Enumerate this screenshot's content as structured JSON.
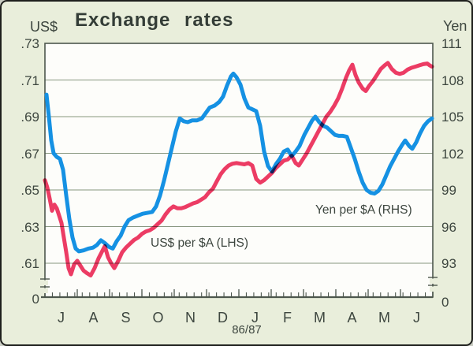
{
  "page": {
    "background_color": "#e9eedb",
    "plot_background": "#fdfdfa",
    "text_color": "#3d463f",
    "grid_color": "#87967f",
    "axis_color": "#4d574d"
  },
  "header": {
    "title": "Exchange rates"
  },
  "left_axis": {
    "unit_label": "US$",
    "tick_labels": [
      ".73",
      ".71",
      ".69",
      ".67",
      ".65",
      ".63",
      ".61"
    ],
    "zero_label": "0"
  },
  "right_axis": {
    "unit_label": "Yen",
    "tick_labels": [
      "111",
      "108",
      "105",
      "102",
      "99",
      "96",
      "93"
    ],
    "zero_label": "0"
  },
  "x_axis": {
    "month_labels": [
      "J",
      "A",
      "S",
      "O",
      "N",
      "D",
      "J",
      "F",
      "M",
      "A",
      "M",
      "J"
    ],
    "period_label": "86/87"
  },
  "annotations": {
    "lhs_series_label": "US$ per $A (LHS)",
    "rhs_series_label": "Yen per $A (RHS)"
  },
  "chart_data": {
    "type": "line",
    "title": "Exchange rates",
    "x_period": "Jul 1986 - Jun 1987 (weekly), labels J A S O N D J F M A M J, 86/87",
    "left_axis": {
      "label": "US$",
      "ticks": [
        0.73,
        0.71,
        0.69,
        0.67,
        0.65,
        0.63,
        0.61
      ],
      "min_shown": 0.61,
      "max_shown": 0.73,
      "axis_break_to_zero": true
    },
    "right_axis": {
      "label": "Yen",
      "ticks": [
        111,
        108,
        105,
        102,
        99,
        96,
        93
      ],
      "min_shown": 93,
      "max_shown": 111,
      "axis_break_to_zero": true
    },
    "grid": "horizontal only",
    "series": [
      {
        "name": "US$ per $A (LHS)",
        "axis": "left",
        "color": "#1591e3",
        "points": [
          [
            57,
            0.702
          ],
          [
            60,
            0.69
          ],
          [
            63,
            0.677
          ],
          [
            66,
            0.67
          ],
          [
            70,
            0.668
          ],
          [
            74,
            0.667
          ],
          [
            78,
            0.661
          ],
          [
            82,
            0.647
          ],
          [
            86,
            0.634
          ],
          [
            90,
            0.624
          ],
          [
            94,
            0.618
          ],
          [
            98,
            0.6165
          ],
          [
            104,
            0.617
          ],
          [
            110,
            0.618
          ],
          [
            116,
            0.6185
          ],
          [
            121,
            0.62
          ],
          [
            126,
            0.6225
          ],
          [
            131,
            0.621
          ],
          [
            136,
            0.619
          ],
          [
            141,
            0.618
          ],
          [
            146,
            0.622
          ],
          [
            151,
            0.625
          ],
          [
            156,
            0.63
          ],
          [
            161,
            0.6335
          ],
          [
            167,
            0.635
          ],
          [
            173,
            0.636
          ],
          [
            179,
            0.637
          ],
          [
            185,
            0.6375
          ],
          [
            191,
            0.638
          ],
          [
            196,
            0.641
          ],
          [
            201,
            0.647
          ],
          [
            206,
            0.655
          ],
          [
            211,
            0.664
          ],
          [
            216,
            0.673
          ],
          [
            221,
            0.682
          ],
          [
            226,
            0.689
          ],
          [
            231,
            0.6875
          ],
          [
            236,
            0.687
          ],
          [
            242,
            0.688
          ],
          [
            248,
            0.688
          ],
          [
            254,
            0.689
          ],
          [
            259,
            0.692
          ],
          [
            264,
            0.695
          ],
          [
            270,
            0.696
          ],
          [
            276,
            0.698
          ],
          [
            281,
            0.701
          ],
          [
            286,
            0.707
          ],
          [
            291,
            0.712
          ],
          [
            294,
            0.7135
          ],
          [
            298,
            0.7115
          ],
          [
            303,
            0.7075
          ],
          [
            308,
            0.7
          ],
          [
            313,
            0.695
          ],
          [
            318,
            0.694
          ],
          [
            323,
            0.693
          ],
          [
            328,
            0.685
          ],
          [
            333,
            0.671
          ],
          [
            338,
            0.663
          ],
          [
            343,
            0.66
          ],
          [
            348,
            0.664
          ],
          [
            353,
            0.667
          ],
          [
            358,
            0.671
          ],
          [
            363,
            0.672
          ],
          [
            368,
            0.6685
          ],
          [
            373,
            0.671
          ],
          [
            378,
            0.674
          ],
          [
            384,
            0.68
          ],
          [
            389,
            0.684
          ],
          [
            394,
            0.688
          ],
          [
            398,
            0.69
          ],
          [
            403,
            0.687
          ],
          [
            408,
            0.685
          ],
          [
            413,
            0.684
          ],
          [
            418,
            0.682
          ],
          [
            423,
            0.68
          ],
          [
            428,
            0.6795
          ],
          [
            433,
            0.6795
          ],
          [
            438,
            0.679
          ],
          [
            443,
            0.673
          ],
          [
            448,
            0.667
          ],
          [
            453,
            0.66
          ],
          [
            458,
            0.654
          ],
          [
            463,
            0.65
          ],
          [
            468,
            0.6485
          ],
          [
            473,
            0.648
          ],
          [
            478,
            0.6495
          ],
          [
            483,
            0.653
          ],
          [
            488,
            0.658
          ],
          [
            493,
            0.663
          ],
          [
            498,
            0.667
          ],
          [
            503,
            0.671
          ],
          [
            508,
            0.6745
          ],
          [
            512,
            0.677
          ],
          [
            517,
            0.674
          ],
          [
            521,
            0.6725
          ],
          [
            526,
            0.676
          ],
          [
            531,
            0.681
          ],
          [
            536,
            0.685
          ],
          [
            541,
            0.6875
          ],
          [
            546,
            0.689
          ]
        ]
      },
      {
        "name": "Yen per $A (RHS)",
        "axis": "right",
        "color": "#ee3c66",
        "points": [
          [
            55,
            99.8
          ],
          [
            58,
            99.2
          ],
          [
            61,
            98.3
          ],
          [
            64,
            97.3
          ],
          [
            67,
            97.8
          ],
          [
            70,
            97.5
          ],
          [
            73,
            96.9
          ],
          [
            76,
            96.3
          ],
          [
            79,
            95.1
          ],
          [
            82,
            93.9
          ],
          [
            85,
            92.6
          ],
          [
            88,
            92.1
          ],
          [
            92,
            92.9
          ],
          [
            96,
            93.2
          ],
          [
            100,
            92.8
          ],
          [
            104,
            92.4
          ],
          [
            108,
            92.2
          ],
          [
            113,
            92.0
          ],
          [
            118,
            92.6
          ],
          [
            123,
            93.4
          ],
          [
            127,
            93.9
          ],
          [
            131,
            94.4
          ],
          [
            135,
            93.5
          ],
          [
            139,
            93.0
          ],
          [
            143,
            92.6
          ],
          [
            148,
            93.2
          ],
          [
            153,
            93.9
          ],
          [
            158,
            94.3
          ],
          [
            163,
            94.6
          ],
          [
            168,
            94.9
          ],
          [
            173,
            95.1
          ],
          [
            178,
            95.4
          ],
          [
            183,
            95.6
          ],
          [
            188,
            95.7
          ],
          [
            193,
            95.9
          ],
          [
            198,
            96.2
          ],
          [
            203,
            96.5
          ],
          [
            208,
            97.0
          ],
          [
            213,
            97.4
          ],
          [
            218,
            97.65
          ],
          [
            223,
            97.5
          ],
          [
            228,
            97.5
          ],
          [
            233,
            97.6
          ],
          [
            238,
            97.75
          ],
          [
            243,
            97.9
          ],
          [
            248,
            98.0
          ],
          [
            253,
            98.2
          ],
          [
            258,
            98.4
          ],
          [
            263,
            98.8
          ],
          [
            268,
            99.1
          ],
          [
            273,
            99.7
          ],
          [
            278,
            100.3
          ],
          [
            283,
            100.7
          ],
          [
            288,
            101.0
          ],
          [
            293,
            101.15
          ],
          [
            298,
            101.2
          ],
          [
            303,
            101.15
          ],
          [
            308,
            101.1
          ],
          [
            313,
            101.2
          ],
          [
            318,
            101.0
          ],
          [
            323,
            99.9
          ],
          [
            328,
            99.6
          ],
          [
            333,
            99.8
          ],
          [
            338,
            100.1
          ],
          [
            343,
            100.4
          ],
          [
            348,
            100.8
          ],
          [
            353,
            101.1
          ],
          [
            358,
            101.4
          ],
          [
            363,
            101.5
          ],
          [
            368,
            101.8
          ],
          [
            373,
            101.2
          ],
          [
            377,
            101.0
          ],
          [
            382,
            101.5
          ],
          [
            387,
            102.0
          ],
          [
            392,
            102.6
          ],
          [
            397,
            103.2
          ],
          [
            402,
            103.8
          ],
          [
            407,
            104.4
          ],
          [
            412,
            105.0
          ],
          [
            417,
            105.4
          ],
          [
            422,
            105.9
          ],
          [
            427,
            106.5
          ],
          [
            432,
            107.3
          ],
          [
            437,
            108.2
          ],
          [
            441,
            108.8
          ],
          [
            445,
            109.25
          ],
          [
            449,
            108.4
          ],
          [
            453,
            107.8
          ],
          [
            458,
            107.3
          ],
          [
            462,
            107.1
          ],
          [
            466,
            107.5
          ],
          [
            471,
            107.9
          ],
          [
            476,
            108.4
          ],
          [
            481,
            108.9
          ],
          [
            486,
            109.2
          ],
          [
            490,
            109.4
          ],
          [
            495,
            108.9
          ],
          [
            500,
            108.6
          ],
          [
            505,
            108.5
          ],
          [
            510,
            108.6
          ],
          [
            515,
            108.85
          ],
          [
            520,
            109.0
          ],
          [
            525,
            109.1
          ],
          [
            530,
            109.2
          ],
          [
            535,
            109.3
          ],
          [
            540,
            109.35
          ],
          [
            543,
            109.2
          ],
          [
            546,
            109.1
          ]
        ]
      }
    ]
  }
}
